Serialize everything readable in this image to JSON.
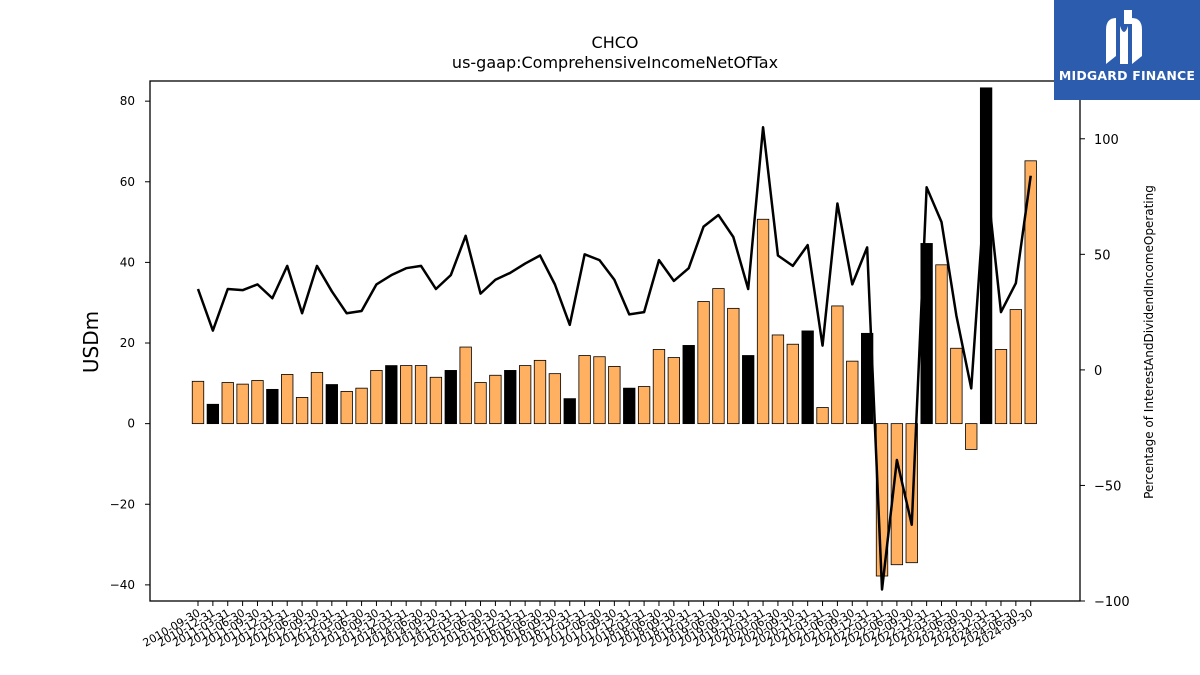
{
  "chart_data": {
    "type": "bar",
    "title": "CHCO",
    "subtitle": "us-gaap:ComprehensiveIncomeNetOfTax",
    "ylabel": "USDm",
    "y2label": "Percentage of InterestAndDividendIncomeOperating",
    "ylim": [
      -44,
      85
    ],
    "y2lim": [
      -100,
      125
    ],
    "yticks": [
      -40,
      -20,
      0,
      20,
      40,
      60,
      80
    ],
    "y2ticks": [
      -100,
      -50,
      0,
      50,
      100
    ],
    "categories": [
      "2010-09-30",
      "2010-12-31",
      "2011-03-31",
      "2011-06-30",
      "2011-09-30",
      "2011-12-31",
      "2012-03-31",
      "2012-06-30",
      "2012-09-30",
      "2012-12-31",
      "2013-03-31",
      "2013-06-30",
      "2013-09-30",
      "2013-12-31",
      "2014-03-31",
      "2014-06-30",
      "2014-09-30",
      "2014-12-31",
      "2015-03-31",
      "2015-06-30",
      "2015-09-30",
      "2015-12-31",
      "2016-03-31",
      "2016-06-30",
      "2016-09-30",
      "2016-12-31",
      "2017-03-31",
      "2017-06-30",
      "2017-09-30",
      "2017-12-31",
      "2018-03-31",
      "2018-06-30",
      "2018-09-30",
      "2018-12-31",
      "2019-03-31",
      "2019-06-30",
      "2019-09-30",
      "2019-12-31",
      "2020-03-31",
      "2020-06-30",
      "2020-09-30",
      "2020-12-31",
      "2021-03-31",
      "2021-06-30",
      "2021-09-30",
      "2021-12-31",
      "2022-03-31",
      "2022-06-30",
      "2022-09-30",
      "2022-12-31",
      "2023-03-31",
      "2023-06-30",
      "2023-09-30",
      "2023-12-31",
      "2024-03-31",
      "2024-06-30",
      "2024-09-30"
    ],
    "xtick_labels": [
      "2010-09-30",
      "2010-12-31",
      "2011-03-31",
      "2011-06-30",
      "2011-09-30",
      "2011-12-31",
      "2012-03-31",
      "2012-06-30",
      "2012-09-30",
      "2012-12-31",
      "2013-03-31",
      "2013-06-30",
      "2013-09-30",
      "2013-12-31",
      "2014-03-31",
      "2014-06-30",
      "2014-09-30",
      "2014-12-31",
      "2015-03-31",
      "2015-06-30",
      "2015-09-30",
      "2015-12-31",
      "2016-03-31",
      "2016-06-30",
      "2016-09-30",
      "2016-12-31",
      "2017-03-31",
      "2017-06-30",
      "2017-09-30",
      "2017-12-31",
      "2018-03-31",
      "2018-06-30",
      "2018-09-30",
      "2018-12-31",
      "2019-03-31",
      "2019-06-30",
      "2019-09-30",
      "2019-12-31",
      "2020-03-31",
      "2020-06-30",
      "2020-09-30",
      "2020-12-31",
      "2021-03-31",
      "2021-06-30",
      "2021-09-30",
      "2021-12-31",
      "2022-03-31",
      "2022-06-30",
      "2022-09-30",
      "2022-12-31",
      "2023-03-31",
      "2023-06-30",
      "2023-09-30",
      "2023-12-31",
      "2024-03-31",
      "2024-06-30",
      "2024-09-30"
    ],
    "bar_values": [
      10.5,
      4.8,
      10.2,
      9.8,
      10.7,
      8.5,
      12.2,
      6.5,
      12.7,
      9.7,
      8.0,
      8.8,
      13.2,
      14.4,
      14.4,
      14.4,
      11.5,
      13.2,
      19.0,
      10.2,
      12.0,
      13.2,
      14.4,
      15.7,
      12.4,
      6.2,
      16.9,
      16.6,
      14.2,
      8.8,
      9.2,
      18.4,
      16.4,
      19.4,
      30.3,
      33.5,
      28.6,
      16.9,
      50.7,
      22.0,
      19.7,
      23.0,
      4.0,
      29.2,
      15.5,
      22.4,
      -37.8,
      -35.0,
      -34.5,
      44.7,
      39.4,
      18.7,
      -6.4,
      83.3,
      18.4,
      28.3,
      65.2
    ],
    "bar_colors": [
      "orange",
      "black",
      "orange",
      "orange",
      "orange",
      "black",
      "orange",
      "orange",
      "orange",
      "black",
      "orange",
      "orange",
      "orange",
      "black",
      "orange",
      "orange",
      "orange",
      "black",
      "orange",
      "orange",
      "orange",
      "black",
      "orange",
      "orange",
      "orange",
      "black",
      "orange",
      "orange",
      "orange",
      "black",
      "orange",
      "orange",
      "orange",
      "black",
      "orange",
      "orange",
      "orange",
      "black",
      "orange",
      "orange",
      "orange",
      "black",
      "orange",
      "orange",
      "orange",
      "black",
      "orange",
      "orange",
      "orange",
      "black",
      "orange",
      "orange",
      "orange",
      "black",
      "orange",
      "orange",
      "orange"
    ],
    "line_values": [
      35,
      17,
      35,
      34.5,
      37,
      31,
      45,
      24.5,
      45,
      34,
      24.5,
      25.5,
      37,
      41,
      44,
      45,
      35,
      41,
      58,
      33,
      39,
      42,
      46,
      49.5,
      37,
      19.5,
      50,
      47.5,
      39,
      24,
      25,
      47.5,
      38.5,
      44,
      62,
      67,
      57.5,
      35,
      105,
      49.5,
      45,
      54,
      10.5,
      72,
      37,
      53,
      -95,
      -39,
      -67,
      79,
      64,
      23.5,
      -8,
      85,
      25,
      37.5,
      84
    ],
    "colors": {
      "orange_bar": "#ffb060",
      "black_bar": "#000000",
      "line": "#000000",
      "logo_bg": "#2b5cad"
    }
  },
  "logo": {
    "text": "MIDGARD FINANCE"
  }
}
